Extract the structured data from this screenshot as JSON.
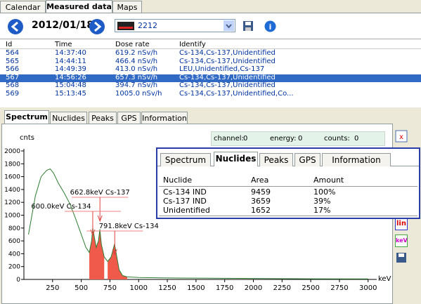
{
  "top_tabs": [
    "Calendar",
    "Measured data",
    "Maps"
  ],
  "toolbar": {
    "date": "2012/01/18",
    "device": "2212"
  },
  "table": {
    "columns": [
      "Id",
      "Time",
      "Dose rate",
      "Identify"
    ],
    "selected_row": 3,
    "rows": [
      [
        "564",
        "14:37:40",
        "619.2 nSv/h",
        "Cs-134,Cs-137,Unidentified"
      ],
      [
        "565",
        "14:44:11",
        "466.4 nSv/h",
        "Cs-134,Cs-137,Unidentified"
      ],
      [
        "566",
        "14:49:39",
        "413.0 nSv/h",
        "LEU,Unidentified,Cs-137"
      ],
      [
        "567",
        "14:56:26",
        "657.3 nSv/h",
        "Cs-134,Cs-137,Unidentified"
      ],
      [
        "568",
        "15:04:48",
        "394.7 nSv/h",
        "Cs-134,Cs-137,Unidentified"
      ],
      [
        "569",
        "15:13:45",
        "1005.0 nSv/h",
        "Cs-134,Cs-137,Unidentified,Co..."
      ]
    ]
  },
  "bottom_tabs": [
    "Spectrum",
    "Nuclides",
    "Peaks",
    "GPS",
    "Information"
  ],
  "status": {
    "channel_label": "channel:",
    "channel": "0",
    "energy_label": "energy:",
    "energy": "0",
    "counts_label": "counts:",
    "counts": "0"
  },
  "side_buttons": [
    "lin",
    "keV"
  ],
  "popup": {
    "tabs": [
      "Spectrum",
      "Nuclides",
      "Peaks",
      "GPS",
      "Information"
    ],
    "columns": [
      "Nuclide",
      "Area",
      "Amount"
    ],
    "rows": [
      [
        "Cs-134 IND",
        "9459",
        "100%"
      ],
      [
        "Cs-137 IND",
        "3659",
        "39%"
      ],
      [
        "Unidentified",
        "1652",
        "17%"
      ]
    ]
  },
  "chart_data": {
    "type": "line",
    "y_label": "cnts",
    "x_label": "keV",
    "color": "#2e7d32",
    "fill_color": "#f05a4a",
    "xlim": [
      0,
      3075
    ],
    "ylim": [
      0,
      2000
    ],
    "xticks": [
      250,
      500,
      750,
      1000,
      1250,
      1500,
      1750,
      2000,
      2250,
      2500,
      2750,
      3000
    ],
    "yticks": [
      0,
      200,
      400,
      600,
      800,
      1000,
      1200,
      1400,
      1600,
      1800,
      2000
    ],
    "x": [
      40,
      60,
      100,
      150,
      200,
      230,
      260,
      300,
      350,
      400,
      450,
      500,
      540,
      570,
      590,
      600,
      610,
      630,
      650,
      662,
      675,
      700,
      730,
      760,
      790,
      805,
      830,
      860,
      900,
      1000,
      1200,
      1500,
      2000,
      2500,
      3000
    ],
    "values": [
      700,
      900,
      1300,
      1600,
      1700,
      1720,
      1650,
      1500,
      1350,
      1180,
      950,
      700,
      500,
      420,
      600,
      800,
      700,
      500,
      600,
      780,
      550,
      350,
      280,
      350,
      550,
      400,
      150,
      60,
      40,
      30,
      25,
      20,
      15,
      10,
      8
    ],
    "fill_ranges": [
      [
        13,
        21
      ],
      [
        22,
        28
      ]
    ],
    "annotations": [
      {
        "label": "662.8keV Cs-137",
        "x": 662.8
      },
      {
        "label": "600.0keV Cs-134",
        "x": 600.0
      },
      {
        "label": "791.8keV Cs-134",
        "x": 791.8
      }
    ]
  }
}
